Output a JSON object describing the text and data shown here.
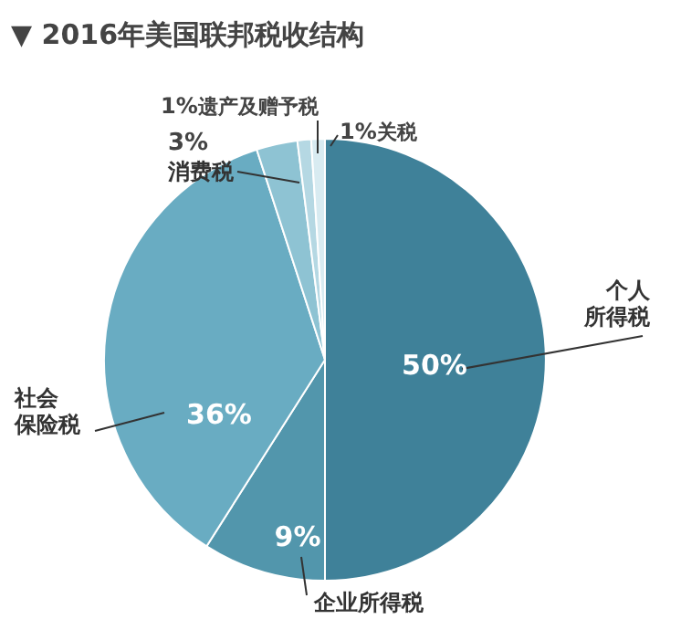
{
  "chart_data": {
    "type": "pie",
    "title": "▼ 2016年美国联邦税收结构",
    "categories": [
      "个人所得税",
      "企业所得税",
      "社会保险税",
      "消费税",
      "遗产及赠予税",
      "关税"
    ],
    "values": [
      50,
      9,
      36,
      3,
      1,
      1
    ],
    "value_labels": [
      "50%",
      "9%",
      "36%",
      "3%",
      "1%",
      "1%"
    ],
    "colors": [
      "#3f8199",
      "#5296ac",
      "#69acc2",
      "#8ec3d3",
      "#b5d8e3",
      "#d8ebf1"
    ]
  }
}
